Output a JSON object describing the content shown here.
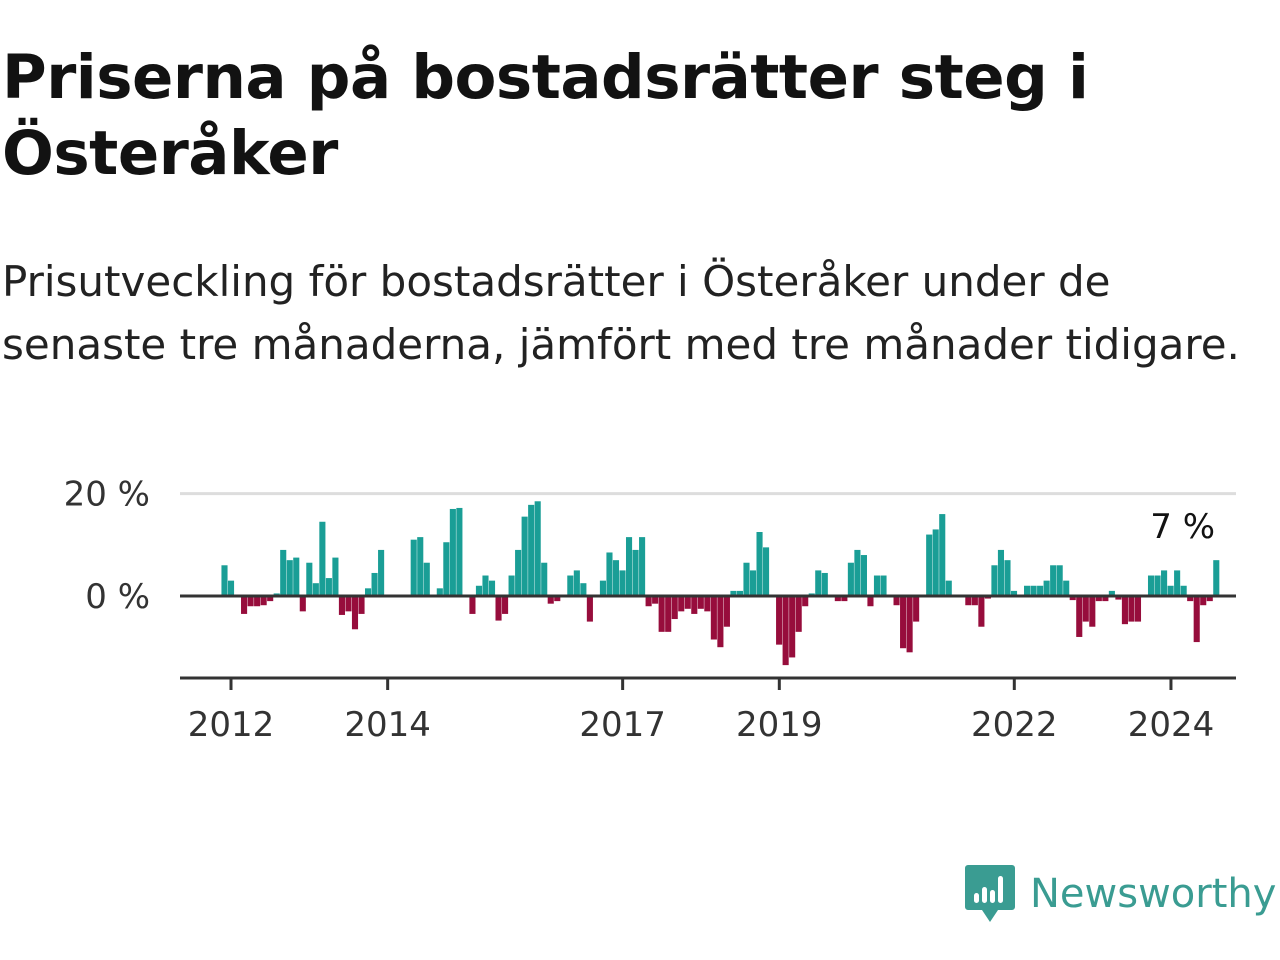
{
  "title": "Priserna på bostadsrätter steg i Österåker",
  "subtitle": "Prisutveckling för bostadsrätter i Österåker under de senaste tre månaderna, jämfört med tre månader tidigare.",
  "brand": {
    "name": "Newsworthy",
    "logo_icon": "bar-chart-logo-icon"
  },
  "colors": {
    "positive": "#1a9e96",
    "negative": "#970d3c",
    "brand": "#3a9c92"
  },
  "chart_data": {
    "type": "bar",
    "title": "",
    "xlabel": "",
    "ylabel": "",
    "ylim": [
      -15,
      21
    ],
    "ytick_values": [
      0,
      20
    ],
    "ytick_labels": [
      "0 %",
      "20 %"
    ],
    "xtick_values": [
      2012,
      2014,
      2017,
      2019,
      2022,
      2024
    ],
    "xtick_labels": [
      "2012",
      "2014",
      "2017",
      "2019",
      "2022",
      "2024"
    ],
    "x_start": 2011.917,
    "x_step": 0.0833,
    "grid": true,
    "end_label": "7 %",
    "values": [
      6,
      3,
      0,
      -3.5,
      -2,
      -2,
      -1.8,
      -1,
      0.5,
      9,
      7,
      7.5,
      -3,
      6.5,
      2.5,
      14.5,
      3.5,
      7.5,
      -3.7,
      -3,
      -6.5,
      -3.5,
      1.5,
      4.5,
      9,
      0,
      0,
      0,
      0,
      11,
      11.5,
      6.5,
      0,
      1.5,
      10.5,
      17,
      17.2,
      0,
      -3.5,
      2,
      4,
      3,
      -4.8,
      -3.5,
      4,
      9,
      15.5,
      17.8,
      18.5,
      6.5,
      -1.5,
      -1,
      0,
      4,
      5,
      2.5,
      -5,
      0,
      3,
      8.5,
      7,
      5,
      11.5,
      9,
      11.5,
      -2,
      -1.5,
      -7,
      -7,
      -4.5,
      -3,
      -2.5,
      -3.5,
      -2.5,
      -3,
      -8.5,
      -10,
      -6,
      1,
      1,
      6.5,
      5,
      12.5,
      9.5,
      0,
      -9.5,
      -13.5,
      -12,
      -7,
      -2,
      0.5,
      5,
      4.5,
      0,
      -1,
      -1,
      6.5,
      9,
      8,
      -2,
      4,
      4,
      0,
      -1.8,
      -10.2,
      -11,
      -5,
      0,
      12,
      13,
      16,
      3,
      0,
      0,
      -1.8,
      -1.8,
      -6,
      -0.5,
      6,
      9,
      7,
      1,
      0,
      2,
      2,
      2,
      3,
      6,
      6,
      3,
      -0.8,
      -8,
      -5,
      -6,
      -1,
      -1,
      1,
      -0.7,
      -5.5,
      -5,
      -5,
      0,
      4,
      4,
      5,
      2,
      5,
      2,
      -1,
      -9,
      -1.8,
      -1,
      7
    ]
  }
}
